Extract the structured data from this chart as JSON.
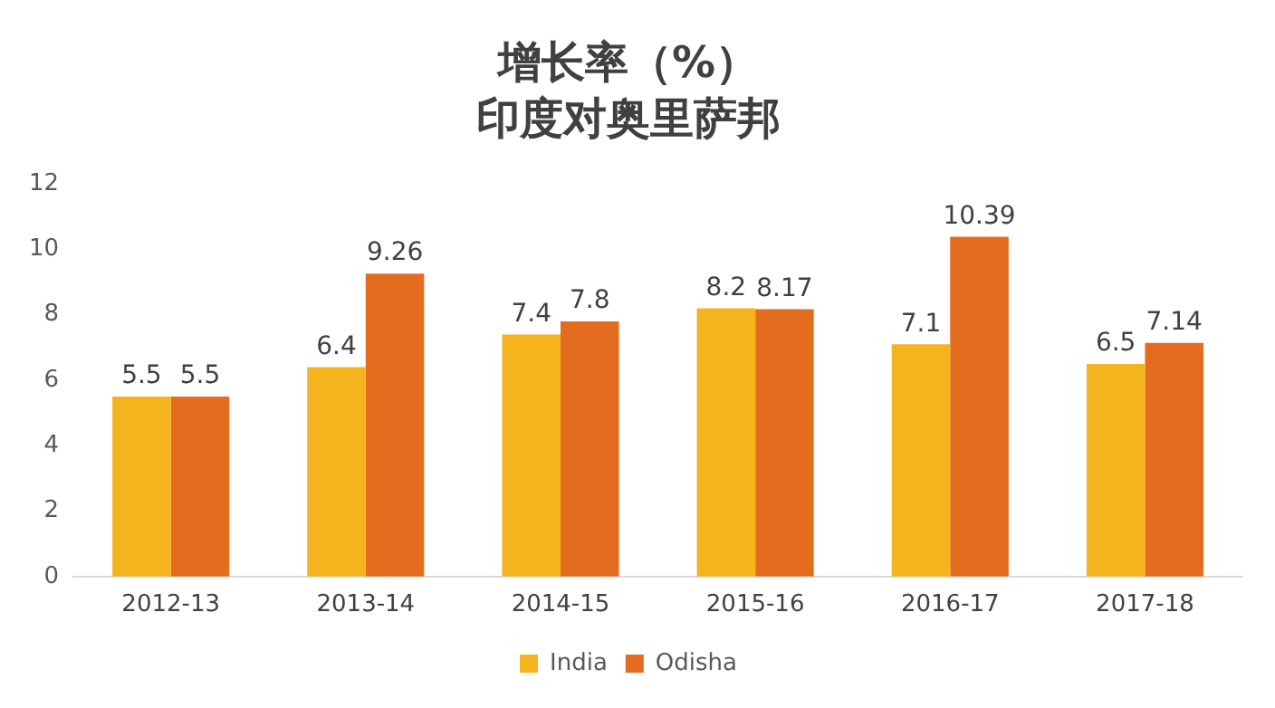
{
  "chart_data": {
    "type": "bar",
    "title": "增长率（%）",
    "subtitle": "印度对奥里萨邦",
    "categories": [
      "2012-13",
      "2013-14",
      "2014-15",
      "2015-16",
      "2016-17",
      "2017-18"
    ],
    "series": [
      {
        "name": "India",
        "color": "#f5b41e",
        "values": [
          5.5,
          6.4,
          7.4,
          8.2,
          7.1,
          6.5
        ]
      },
      {
        "name": "Odisha",
        "color": "#e46c1f",
        "values": [
          5.5,
          9.26,
          7.8,
          8.17,
          10.39,
          7.14
        ]
      }
    ],
    "ylim": [
      0,
      12
    ],
    "yticks": [
      0,
      2,
      4,
      6,
      8,
      10,
      12
    ],
    "grid": false,
    "legend": "bottom",
    "data_labels": true
  }
}
